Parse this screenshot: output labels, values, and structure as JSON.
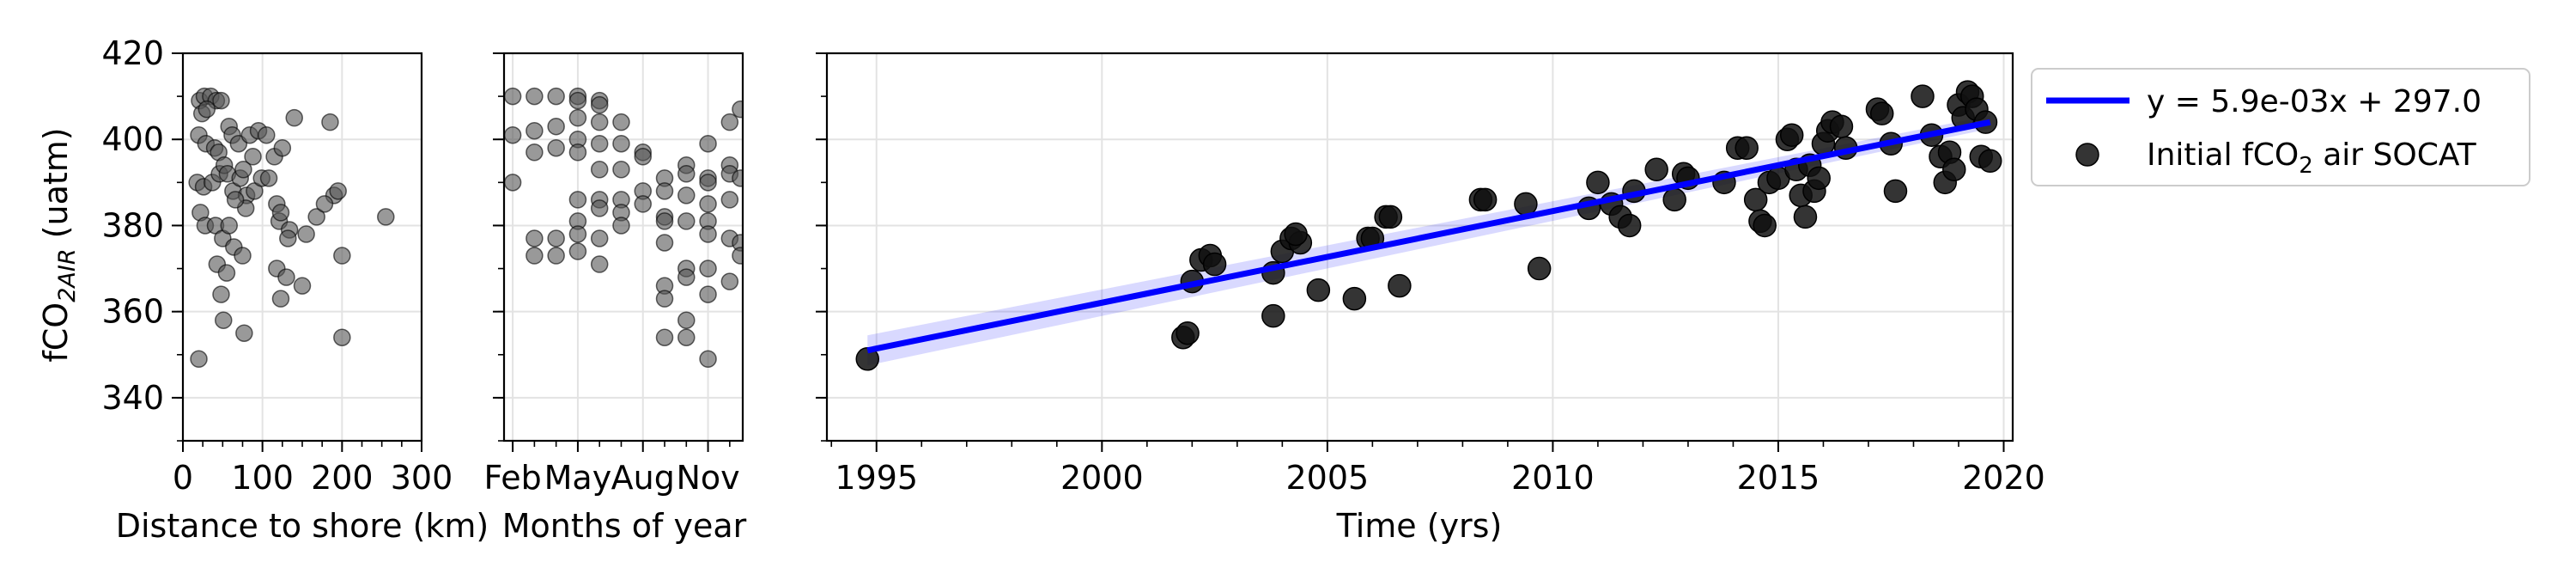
{
  "chart_data": [
    {
      "type": "scatter",
      "xlabel": "Distance to shore (km)",
      "ylabel": "fCO",
      "ylabel_sub": "2AIR",
      "ylabel_unit": " (uatm)",
      "xlim": [
        0,
        300
      ],
      "ylim": [
        330,
        420
      ],
      "xticks": [
        0,
        100,
        200,
        300
      ],
      "yticks": [
        340,
        360,
        380,
        400,
        420
      ],
      "grid": true,
      "marker_color": "#555555",
      "points": [
        [
          21,
          409
        ],
        [
          27,
          410
        ],
        [
          35,
          410
        ],
        [
          42,
          409
        ],
        [
          48,
          409
        ],
        [
          24,
          406
        ],
        [
          30,
          407
        ],
        [
          20,
          401
        ],
        [
          29,
          399
        ],
        [
          40,
          398
        ],
        [
          45,
          397
        ],
        [
          58,
          403
        ],
        [
          62,
          401
        ],
        [
          70,
          399
        ],
        [
          84,
          401
        ],
        [
          95,
          402
        ],
        [
          105,
          401
        ],
        [
          18,
          390
        ],
        [
          26,
          389
        ],
        [
          37,
          390
        ],
        [
          46,
          392
        ],
        [
          52,
          394
        ],
        [
          56,
          392
        ],
        [
          63,
          388
        ],
        [
          72,
          391
        ],
        [
          80,
          387
        ],
        [
          90,
          388
        ],
        [
          99,
          391
        ],
        [
          108,
          391
        ],
        [
          115,
          396
        ],
        [
          125,
          398
        ],
        [
          140,
          405
        ],
        [
          185,
          404
        ],
        [
          190,
          387
        ],
        [
          22,
          383
        ],
        [
          28,
          380
        ],
        [
          41,
          380
        ],
        [
          50,
          377
        ],
        [
          58,
          380
        ],
        [
          64,
          375
        ],
        [
          75,
          373
        ],
        [
          118,
          385
        ],
        [
          121,
          381
        ],
        [
          123,
          383
        ],
        [
          134,
          379
        ],
        [
          155,
          378
        ],
        [
          168,
          382
        ],
        [
          178,
          385
        ],
        [
          132,
          377
        ],
        [
          150,
          366
        ],
        [
          123,
          363
        ],
        [
          118,
          370
        ],
        [
          130,
          368
        ],
        [
          200,
          373
        ],
        [
          255,
          382
        ],
        [
          195,
          388
        ],
        [
          48,
          364
        ],
        [
          51,
          358
        ],
        [
          77,
          355
        ],
        [
          43,
          371
        ],
        [
          55,
          369
        ],
        [
          20,
          349
        ],
        [
          200,
          354
        ],
        [
          79,
          384
        ],
        [
          66,
          386
        ],
        [
          88,
          396
        ],
        [
          76,
          393
        ]
      ]
    },
    {
      "type": "scatter",
      "xlabel": "Months of year",
      "xtick_labels": [
        "Feb",
        "May",
        "Aug",
        "Nov"
      ],
      "xticks": [
        2,
        5,
        8,
        11
      ],
      "xlim": [
        1.6,
        12.6
      ],
      "ylim": [
        330,
        420
      ],
      "yticks": [
        340,
        360,
        380,
        400,
        420
      ],
      "grid": true,
      "marker_color": "#555555",
      "points": [
        [
          2,
          410
        ],
        [
          2,
          401
        ],
        [
          2,
          390
        ],
        [
          3,
          410
        ],
        [
          3,
          402
        ],
        [
          3,
          397
        ],
        [
          3,
          377
        ],
        [
          3,
          373
        ],
        [
          4,
          410
        ],
        [
          4,
          403
        ],
        [
          4,
          398
        ],
        [
          4,
          377
        ],
        [
          4,
          373
        ],
        [
          5,
          410
        ],
        [
          5,
          409
        ],
        [
          5,
          405
        ],
        [
          5,
          400
        ],
        [
          5,
          397
        ],
        [
          5,
          386
        ],
        [
          5,
          381
        ],
        [
          5,
          378
        ],
        [
          5,
          374
        ],
        [
          6,
          409
        ],
        [
          6,
          408
        ],
        [
          6,
          404
        ],
        [
          6,
          399
        ],
        [
          6,
          393
        ],
        [
          6,
          386
        ],
        [
          6,
          384
        ],
        [
          6,
          377
        ],
        [
          6,
          371
        ],
        [
          7,
          404
        ],
        [
          7,
          399
        ],
        [
          7,
          393
        ],
        [
          7,
          386
        ],
        [
          7,
          383
        ],
        [
          7,
          380
        ],
        [
          8,
          397
        ],
        [
          8,
          396
        ],
        [
          8,
          388
        ],
        [
          8,
          385
        ],
        [
          9,
          391
        ],
        [
          9,
          388
        ],
        [
          9,
          382
        ],
        [
          9,
          381
        ],
        [
          9,
          376
        ],
        [
          9,
          366
        ],
        [
          9,
          363
        ],
        [
          9,
          354
        ],
        [
          10,
          394
        ],
        [
          10,
          392
        ],
        [
          10,
          387
        ],
        [
          10,
          381
        ],
        [
          10,
          370
        ],
        [
          10,
          368
        ],
        [
          10,
          358
        ],
        [
          10,
          354
        ],
        [
          11,
          399
        ],
        [
          11,
          391
        ],
        [
          11,
          390
        ],
        [
          11,
          385
        ],
        [
          11,
          381
        ],
        [
          11,
          378
        ],
        [
          11,
          370
        ],
        [
          11,
          364
        ],
        [
          11,
          349
        ],
        [
          12,
          404
        ],
        [
          12,
          394
        ],
        [
          12,
          392
        ],
        [
          12,
          386
        ],
        [
          12,
          377
        ],
        [
          12,
          367
        ],
        [
          12.5,
          407
        ],
        [
          12.5,
          391
        ],
        [
          12.5,
          376
        ],
        [
          12.5,
          373
        ]
      ]
    },
    {
      "type": "scatter",
      "xlabel": "Time (yrs)",
      "xlim": [
        1993.9,
        2020.2
      ],
      "ylim": [
        330,
        420
      ],
      "xticks": [
        1995,
        2000,
        2005,
        2010,
        2015,
        2020
      ],
      "yticks": [
        340,
        360,
        380,
        400,
        420
      ],
      "grid": true,
      "legend": "right",
      "line_color": "#0000ff",
      "marker_color": "#111111",
      "series": [
        {
          "name": "y = 5.9e-03x + 297.0",
          "kind": "line",
          "x": [
            1994.8,
            2019.7
          ],
          "y": [
            351,
            404
          ]
        },
        {
          "name": "Initial fCO",
          "name_sub": "2",
          "name_suffix": " air SOCAT",
          "kind": "scatter",
          "points": [
            [
              1994.8,
              349
            ],
            [
              2001.8,
              354
            ],
            [
              2001.9,
              355
            ],
            [
              2002.0,
              367
            ],
            [
              2002.2,
              372
            ],
            [
              2002.4,
              373
            ],
            [
              2002.5,
              371
            ],
            [
              2003.8,
              369
            ],
            [
              2003.8,
              359
            ],
            [
              2004.0,
              374
            ],
            [
              2004.2,
              377
            ],
            [
              2004.4,
              376
            ],
            [
              2004.3,
              378
            ],
            [
              2004.8,
              365
            ],
            [
              2005.6,
              363
            ],
            [
              2005.9,
              377
            ],
            [
              2006.0,
              377
            ],
            [
              2006.3,
              382
            ],
            [
              2006.4,
              382
            ],
            [
              2006.6,
              366
            ],
            [
              2008.4,
              386
            ],
            [
              2008.5,
              386
            ],
            [
              2009.4,
              385
            ],
            [
              2009.7,
              370
            ],
            [
              2010.8,
              384
            ],
            [
              2011.0,
              390
            ],
            [
              2011.3,
              385
            ],
            [
              2011.5,
              382
            ],
            [
              2011.7,
              380
            ],
            [
              2011.8,
              388
            ],
            [
              2012.3,
              393
            ],
            [
              2012.7,
              386
            ],
            [
              2012.9,
              392
            ],
            [
              2013.0,
              391
            ],
            [
              2013.8,
              390
            ],
            [
              2014.1,
              398
            ],
            [
              2014.3,
              398
            ],
            [
              2014.5,
              386
            ],
            [
              2014.6,
              381
            ],
            [
              2014.7,
              380
            ],
            [
              2014.8,
              390
            ],
            [
              2015.0,
              391
            ],
            [
              2015.2,
              400
            ],
            [
              2015.3,
              401
            ],
            [
              2015.4,
              393
            ],
            [
              2015.5,
              387
            ],
            [
              2015.6,
              382
            ],
            [
              2015.7,
              394
            ],
            [
              2015.8,
              388
            ],
            [
              2015.9,
              391
            ],
            [
              2016.0,
              399
            ],
            [
              2016.1,
              402
            ],
            [
              2016.2,
              404
            ],
            [
              2016.4,
              403
            ],
            [
              2016.5,
              398
            ],
            [
              2017.2,
              407
            ],
            [
              2017.3,
              406
            ],
            [
              2017.5,
              399
            ],
            [
              2017.6,
              388
            ],
            [
              2018.2,
              410
            ],
            [
              2018.4,
              401
            ],
            [
              2018.6,
              396
            ],
            [
              2018.7,
              390
            ],
            [
              2018.8,
              397
            ],
            [
              2018.9,
              393
            ],
            [
              2019.0,
              408
            ],
            [
              2019.1,
              405
            ],
            [
              2019.2,
              411
            ],
            [
              2019.3,
              410
            ],
            [
              2019.4,
              407
            ],
            [
              2019.5,
              396
            ],
            [
              2019.7,
              395
            ],
            [
              2019.6,
              404
            ]
          ]
        }
      ]
    }
  ]
}
